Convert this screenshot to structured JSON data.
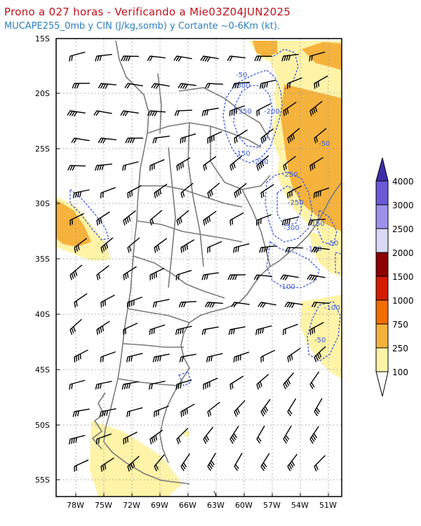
{
  "header": {
    "title": "Prono a 027 horas - Verificando a Mie03Z04JUN2025",
    "subtitle": "MUCAPE255_0mb y CIN (J/kg,somb) y Cortante ~0-6Km (kt)."
  },
  "map": {
    "lat_labels": [
      "15S",
      "20S",
      "25S",
      "30S",
      "35S",
      "40S",
      "45S",
      "50S",
      "55S"
    ],
    "lon_labels": [
      "78W",
      "75W",
      "72W",
      "69W",
      "66W",
      "63W",
      "60W",
      "57W",
      "54W",
      "51W"
    ],
    "colors": {
      "land_border": "#7a7a7a",
      "grid": "#9a9a9a",
      "cin_contour": "#3b5be0",
      "wind_barb": "#000000"
    },
    "cin_contour_labels": [
      "-50",
      "-300",
      "-350",
      "-200",
      "-150",
      "-200",
      "-50",
      "-250",
      "-250",
      "-300",
      "-150",
      "-50",
      "-100",
      "-100",
      "-100",
      "-50"
    ]
  },
  "colorbar": {
    "levels": [
      "4000",
      "3000",
      "2500",
      "2000",
      "1500",
      "1000",
      "750",
      "250",
      "100"
    ],
    "colors": [
      "#3c2fa8",
      "#6a5ad8",
      "#9c92ec",
      "#d9d9f5",
      "#8b0000",
      "#d41c00",
      "#f26d00",
      "#f5b23c",
      "#fff3a8"
    ]
  }
}
